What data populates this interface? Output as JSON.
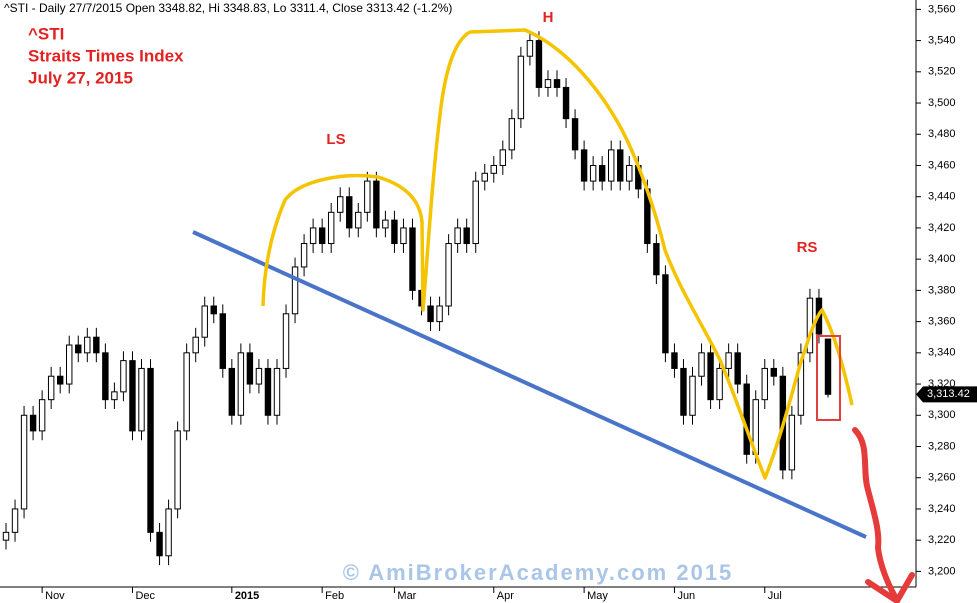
{
  "chart_data": {
    "type": "candlestick",
    "header": "^STI - Daily 27/7/2015 Open 3348.82, Hi 3348.83, Lo 3311.4, Close 3313.42 (-1.2%)",
    "title": "^STI",
    "subtitle": "Straits Times Index",
    "date_label": "July 27, 2015",
    "pattern_labels": [
      "LS",
      "H",
      "RS"
    ],
    "watermark": "© AmiBrokerAcademy.com 2015",
    "last_price": {
      "value": 3313.42,
      "label": "3,313.42"
    },
    "categories": [
      null,
      null,
      null,
      null,
      "Nov",
      null,
      null,
      null,
      null,
      null,
      null,
      null,
      null,
      null,
      "Dec",
      null,
      null,
      null,
      null,
      null,
      null,
      null,
      null,
      null,
      null,
      "2015",
      null,
      null,
      null,
      null,
      null,
      null,
      null,
      null,
      null,
      "Feb",
      null,
      null,
      null,
      null,
      null,
      null,
      null,
      "Mar",
      null,
      null,
      null,
      null,
      null,
      null,
      null,
      null,
      null,
      null,
      "Apr",
      null,
      null,
      null,
      null,
      null,
      null,
      null,
      null,
      null,
      "May",
      null,
      null,
      null,
      null,
      null,
      null,
      null,
      null,
      null,
      "Jun",
      null,
      null,
      null,
      null,
      null,
      null,
      null,
      null,
      null,
      "Jul",
      null,
      null,
      null,
      null,
      null,
      null,
      null
    ],
    "open": [
      3220,
      3225,
      3240,
      3300,
      3290,
      3310,
      3325,
      3320,
      3345,
      3340,
      3350,
      3340,
      3310,
      3315,
      3335,
      3290,
      3330,
      3225,
      3210,
      3240,
      3290,
      3340,
      3350,
      3370,
      3365,
      3330,
      3300,
      3340,
      3320,
      3330,
      3300,
      3330,
      3365,
      3395,
      3410,
      3420,
      3410,
      3430,
      3440,
      3420,
      3430,
      3450,
      3420,
      3425,
      3410,
      3420,
      3380,
      3370,
      3360,
      3370,
      3410,
      3420,
      3410,
      3450,
      3455,
      3460,
      3470,
      3490,
      3530,
      3540,
      3510,
      3515,
      3510,
      3490,
      3470,
      3450,
      3460,
      3450,
      3470,
      3450,
      3460,
      3445,
      3410,
      3390,
      3340,
      3330,
      3300,
      3325,
      3340,
      3310,
      3330,
      3340,
      3320,
      3275,
      3310,
      3330,
      3325,
      3265,
      3300,
      3340,
      3375,
      3348.82
    ],
    "high": [
      3231,
      3246,
      3306,
      3306,
      3316,
      3331,
      3331,
      3351,
      3351,
      3356,
      3356,
      3346,
      3321,
      3341,
      3341,
      3336,
      3336,
      3231,
      3246,
      3296,
      3346,
      3356,
      3376,
      3376,
      3371,
      3336,
      3346,
      3346,
      3336,
      3336,
      3336,
      3371,
      3401,
      3416,
      3426,
      3426,
      3436,
      3446,
      3446,
      3436,
      3456,
      3456,
      3431,
      3431,
      3426,
      3426,
      3386,
      3376,
      3376,
      3416,
      3426,
      3426,
      3456,
      3461,
      3466,
      3476,
      3496,
      3536,
      3546,
      3546,
      3521,
      3521,
      3516,
      3496,
      3476,
      3466,
      3466,
      3476,
      3476,
      3466,
      3466,
      3451,
      3416,
      3396,
      3346,
      3336,
      3331,
      3346,
      3346,
      3336,
      3346,
      3346,
      3326,
      3316,
      3336,
      3336,
      3331,
      3306,
      3346,
      3381,
      3381,
      3348.83
    ],
    "low": [
      3214,
      3219,
      3234,
      3284,
      3284,
      3304,
      3314,
      3314,
      3334,
      3334,
      3334,
      3304,
      3304,
      3309,
      3284,
      3284,
      3219,
      3204,
      3204,
      3234,
      3284,
      3334,
      3344,
      3359,
      3324,
      3294,
      3294,
      3314,
      3314,
      3294,
      3294,
      3324,
      3359,
      3389,
      3404,
      3404,
      3404,
      3424,
      3414,
      3414,
      3424,
      3414,
      3414,
      3404,
      3404,
      3374,
      3364,
      3354,
      3354,
      3364,
      3404,
      3404,
      3404,
      3444,
      3449,
      3454,
      3464,
      3484,
      3524,
      3504,
      3504,
      3504,
      3484,
      3464,
      3444,
      3444,
      3444,
      3444,
      3444,
      3444,
      3439,
      3404,
      3384,
      3334,
      3324,
      3294,
      3294,
      3319,
      3304,
      3304,
      3324,
      3314,
      3269,
      3269,
      3304,
      3319,
      3259,
      3259,
      3294,
      3334,
      3346,
      3311.4
    ],
    "close": [
      3225,
      3240,
      3300,
      3290,
      3310,
      3325,
      3320,
      3345,
      3340,
      3350,
      3340,
      3310,
      3315,
      3335,
      3290,
      3330,
      3225,
      3210,
      3240,
      3290,
      3340,
      3350,
      3370,
      3365,
      3330,
      3300,
      3340,
      3320,
      3330,
      3300,
      3330,
      3365,
      3395,
      3410,
      3420,
      3410,
      3430,
      3440,
      3420,
      3430,
      3450,
      3420,
      3425,
      3410,
      3420,
      3380,
      3370,
      3360,
      3370,
      3410,
      3420,
      3410,
      3450,
      3455,
      3460,
      3470,
      3490,
      3530,
      3540,
      3510,
      3515,
      3510,
      3490,
      3470,
      3450,
      3460,
      3450,
      3470,
      3450,
      3460,
      3445,
      3410,
      3390,
      3340,
      3330,
      3300,
      3325,
      3340,
      3310,
      3330,
      3340,
      3320,
      3275,
      3310,
      3330,
      3325,
      3265,
      3300,
      3340,
      3375,
      3352,
      3313.42
    ],
    "ylim": [
      3190,
      3566
    ],
    "yticks": [
      {
        "value": 3200,
        "label": "3,200"
      },
      {
        "value": 3220,
        "label": "3,220"
      },
      {
        "value": 3240,
        "label": "3,240"
      },
      {
        "value": 3260,
        "label": "3,260"
      },
      {
        "value": 3280,
        "label": "3,280"
      },
      {
        "value": 3300,
        "label": "3,300"
      },
      {
        "value": 3320,
        "label": "3,320"
      },
      {
        "value": 3340,
        "label": "3,340"
      },
      {
        "value": 3360,
        "label": "3,360"
      },
      {
        "value": 3380,
        "label": "3,380"
      },
      {
        "value": 3400,
        "label": "3,400"
      },
      {
        "value": 3420,
        "label": "3,420"
      },
      {
        "value": 3440,
        "label": "3,440"
      },
      {
        "value": 3460,
        "label": "3,460"
      },
      {
        "value": 3480,
        "label": "3,480"
      },
      {
        "value": 3500,
        "label": "3,500"
      },
      {
        "value": 3520,
        "label": "3,520"
      },
      {
        "value": 3540,
        "label": "3,540"
      },
      {
        "value": 3560,
        "label": "3,560"
      }
    ]
  }
}
